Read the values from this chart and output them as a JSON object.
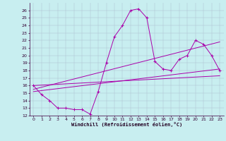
{
  "title": "",
  "xlabel": "Windchill (Refroidissement éolien,°C)",
  "bg_color": "#c8eef0",
  "line_color": "#aa00aa",
  "xlim": [
    -0.5,
    23.5
  ],
  "ylim": [
    12,
    27
  ],
  "xticks": [
    0,
    1,
    2,
    3,
    4,
    5,
    6,
    7,
    8,
    9,
    10,
    11,
    12,
    13,
    14,
    15,
    16,
    17,
    18,
    19,
    20,
    21,
    22,
    23
  ],
  "yticks": [
    12,
    13,
    14,
    15,
    16,
    17,
    18,
    19,
    20,
    21,
    22,
    23,
    24,
    25,
    26
  ],
  "series1_x": [
    0,
    1,
    2,
    3,
    4,
    5,
    6,
    7,
    8,
    9,
    10,
    11,
    12,
    13,
    14,
    15,
    16,
    17,
    18,
    19,
    20,
    21,
    22,
    23
  ],
  "series1_y": [
    16.0,
    14.8,
    14.0,
    13.0,
    13.0,
    12.8,
    12.8,
    12.2,
    15.2,
    19.0,
    22.5,
    24.0,
    26.0,
    26.2,
    25.0,
    19.2,
    18.2,
    18.0,
    19.5,
    20.0,
    22.0,
    21.5,
    20.0,
    18.0
  ],
  "series2_x": [
    0,
    23
  ],
  "series2_y": [
    15.2,
    18.2
  ],
  "series3_x": [
    0,
    23
  ],
  "series3_y": [
    15.5,
    21.8
  ],
  "series4_x": [
    0,
    23
  ],
  "series4_y": [
    16.0,
    17.3
  ],
  "tick_fontsize": 4.5,
  "xlabel_fontsize": 5.0,
  "linewidth": 0.7,
  "marker_size": 3.0
}
